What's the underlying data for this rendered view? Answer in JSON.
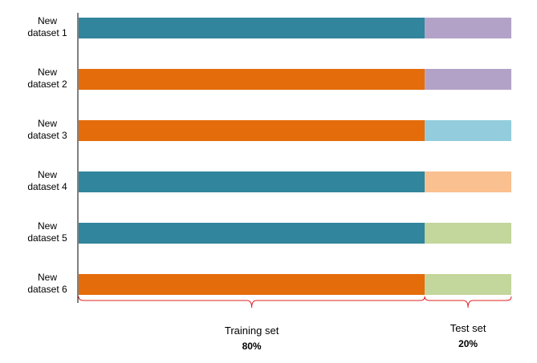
{
  "chart_data": {
    "type": "bar",
    "orientation": "horizontal",
    "stacked": true,
    "categories": [
      [
        "New",
        "dataset 1"
      ],
      [
        "New",
        "dataset 2"
      ],
      [
        "New",
        "dataset 3"
      ],
      [
        "New",
        "dataset 4"
      ],
      [
        "New",
        "dataset 5"
      ],
      [
        "New",
        "dataset 6"
      ]
    ],
    "series": [
      {
        "values": [
          80,
          80,
          80,
          80,
          80,
          80
        ],
        "colors": [
          "#31859c",
          "#e46c0a",
          "#e46c0a",
          "#31859c",
          "#31859c",
          "#e46c0a"
        ]
      },
      {
        "values": [
          20,
          20,
          20,
          20,
          20,
          20
        ],
        "colors": [
          "#b3a2c7",
          "#b3a2c7",
          "#93cddd",
          "#fac090",
          "#c3d69b",
          "#c3d69b"
        ]
      }
    ],
    "xlim": [
      0,
      100
    ],
    "grid": false,
    "legend": "none",
    "annotations": [
      {
        "label": "Training set",
        "value": "80%",
        "from": 0,
        "to": 80
      },
      {
        "label": "Test set",
        "value": "20%",
        "from": 80,
        "to": 100
      }
    ],
    "brace_color": "#e02020"
  }
}
